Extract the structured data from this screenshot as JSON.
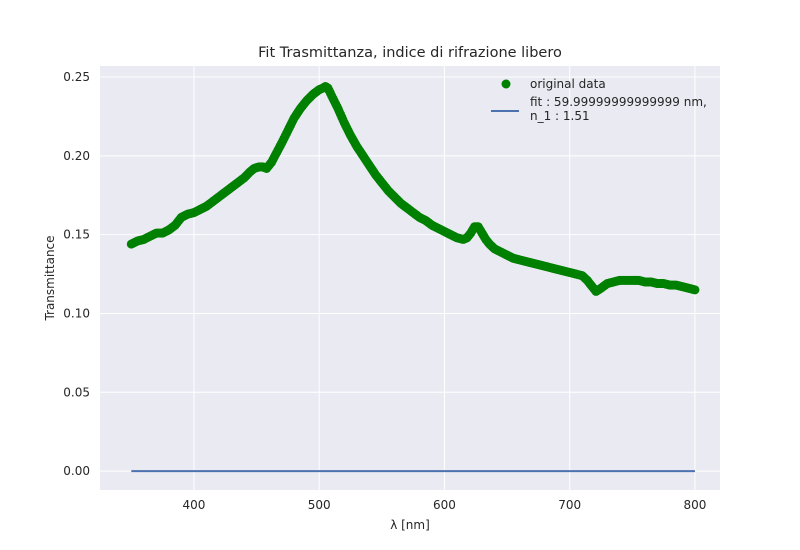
{
  "chart_data": {
    "type": "scatter",
    "title": "Fit Trasmittanza, indice di rifrazione libero",
    "xlabel": "λ [nm]",
    "ylabel": "Transmittance",
    "xlim": [
      325,
      820
    ],
    "ylim": [
      -0.012,
      0.257
    ],
    "xticks": [
      400,
      500,
      600,
      700,
      800
    ],
    "yticks": [
      0.0,
      0.05,
      0.1,
      0.15,
      0.2,
      0.25
    ],
    "xtick_labels": [
      "400",
      "500",
      "600",
      "700",
      "800"
    ],
    "ytick_labels": [
      "0.00",
      "0.05",
      "0.10",
      "0.15",
      "0.20",
      "0.25"
    ],
    "grid": true,
    "legend_position": "top-right",
    "series": [
      {
        "name": "original data",
        "kind": "scatter",
        "color": "#008000",
        "x": [
          350,
          355,
          360,
          365,
          370,
          375,
          380,
          385,
          390,
          395,
          400,
          405,
          410,
          415,
          420,
          425,
          430,
          435,
          440,
          445,
          448,
          452,
          455,
          458,
          462,
          466,
          470,
          475,
          480,
          485,
          490,
          495,
          500,
          503,
          505,
          507,
          510,
          515,
          520,
          525,
          530,
          535,
          540,
          545,
          550,
          555,
          560,
          565,
          570,
          575,
          580,
          585,
          590,
          595,
          600,
          605,
          610,
          615,
          618,
          621,
          624,
          627,
          630,
          633,
          636,
          640,
          645,
          650,
          655,
          660,
          665,
          670,
          675,
          680,
          685,
          690,
          695,
          700,
          705,
          710,
          714,
          718,
          721,
          725,
          730,
          735,
          740,
          745,
          750,
          755,
          760,
          765,
          770,
          775,
          780,
          785,
          790,
          795,
          800
        ],
        "y": [
          0.144,
          0.146,
          0.147,
          0.149,
          0.151,
          0.151,
          0.153,
          0.156,
          0.161,
          0.163,
          0.164,
          0.166,
          0.168,
          0.171,
          0.174,
          0.177,
          0.18,
          0.183,
          0.186,
          0.19,
          0.192,
          0.193,
          0.193,
          0.192,
          0.196,
          0.202,
          0.208,
          0.216,
          0.224,
          0.23,
          0.235,
          0.239,
          0.242,
          0.243,
          0.244,
          0.243,
          0.238,
          0.23,
          0.221,
          0.213,
          0.206,
          0.2,
          0.194,
          0.188,
          0.183,
          0.178,
          0.174,
          0.17,
          0.167,
          0.164,
          0.161,
          0.159,
          0.156,
          0.154,
          0.152,
          0.15,
          0.148,
          0.147,
          0.148,
          0.151,
          0.155,
          0.155,
          0.151,
          0.147,
          0.144,
          0.141,
          0.139,
          0.137,
          0.135,
          0.134,
          0.133,
          0.132,
          0.131,
          0.13,
          0.129,
          0.128,
          0.127,
          0.126,
          0.125,
          0.124,
          0.121,
          0.117,
          0.114,
          0.116,
          0.119,
          0.12,
          0.121,
          0.121,
          0.121,
          0.121,
          0.12,
          0.12,
          0.119,
          0.119,
          0.118,
          0.118,
          0.117,
          0.116,
          0.115
        ]
      },
      {
        "name": "fit : 59.99999999999999 nm,\n n_1 : 1.51",
        "kind": "line",
        "color": "#4c72b0",
        "x": [
          350,
          800
        ],
        "y": [
          0.0,
          0.0
        ]
      }
    ]
  },
  "colors": {
    "axes_bg": "#eaeaf2",
    "grid": "#ffffff",
    "text": "#262626"
  }
}
